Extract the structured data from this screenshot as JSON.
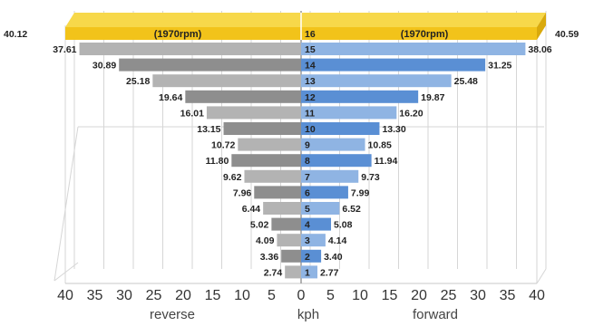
{
  "chart_data": {
    "type": "bar",
    "xlabel": "kph",
    "left_axis_label": "reverse",
    "right_axis_label": "forward",
    "xlim": [
      0,
      40
    ],
    "ticks": [
      40,
      35,
      30,
      25,
      20,
      15,
      10,
      5,
      0,
      5,
      10,
      15,
      20,
      25,
      30,
      35,
      40
    ],
    "top_band": {
      "label_left": "(1970rpm)",
      "label_right": "(1970rpm)",
      "gear": "16",
      "reverse_value": "40.12",
      "forward_value": "40.59"
    },
    "categories": [
      "15",
      "14",
      "13",
      "12",
      "11",
      "10",
      "9",
      "8",
      "7",
      "6",
      "5",
      "4",
      "3",
      "2",
      "1"
    ],
    "series": [
      {
        "name": "reverse",
        "values": [
          37.61,
          30.89,
          25.18,
          19.64,
          16.01,
          13.15,
          10.72,
          11.8,
          9.62,
          7.96,
          6.44,
          5.02,
          4.09,
          3.36,
          2.74
        ]
      },
      {
        "name": "forward",
        "values": [
          38.06,
          31.25,
          25.48,
          19.87,
          16.2,
          13.3,
          10.85,
          11.94,
          9.73,
          7.99,
          6.52,
          5.08,
          4.14,
          3.4,
          2.77
        ]
      }
    ],
    "highlighted_gears": [
      "14",
      "12",
      "10",
      "8",
      "6",
      "4",
      "2"
    ],
    "colors": {
      "band": "#f2c31a",
      "band_top": "#f7d84a",
      "reverse_light": "#b3b3b3",
      "reverse_dark": "#8e8e8e",
      "forward_light": "#8fb4e3",
      "forward_dark": "#5a8fd4"
    }
  }
}
